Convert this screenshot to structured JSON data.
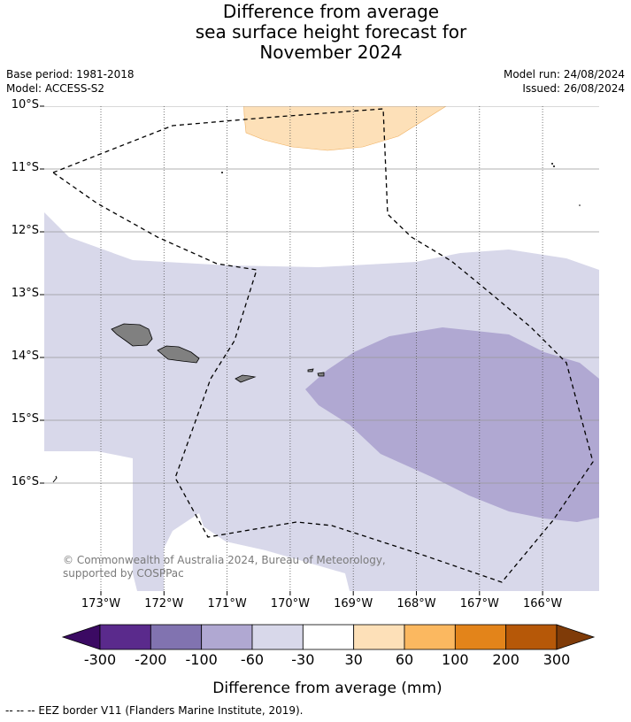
{
  "title": {
    "line1": "Difference from average",
    "line2": "sea surface height forecast for",
    "line3": "November 2024"
  },
  "meta": {
    "base_period": "Base period: 1981-2018",
    "model": "Model: ACCESS-S2",
    "model_run": "Model run: 24/08/2024",
    "issued": "Issued: 26/08/2024"
  },
  "map": {
    "lat_labels": [
      "10°S",
      "11°S",
      "12°S",
      "13°S",
      "14°S",
      "15°S",
      "16°S"
    ],
    "lon_labels": [
      "173°W",
      "172°W",
      "171°W",
      "170°W",
      "169°W",
      "168°W",
      "167°W",
      "166°W"
    ],
    "copyright": "© Commonwealth of Australia 2024, Bureau of Meteorology, supported by COSPPac",
    "colors": {
      "land": "#808080",
      "neg_60_30": "#d8d8ea",
      "neg_100_60": "#b0a8d2",
      "pos_30_60": "#fde0b8"
    }
  },
  "colorbar": {
    "label": "Difference from average (mm)",
    "ticks": [
      "-300",
      "-200",
      "-100",
      "-60",
      "-30",
      "30",
      "60",
      "100",
      "200",
      "300"
    ],
    "colors": [
      "#3b0a63",
      "#5a2a8c",
      "#8173b0",
      "#b0a8d2",
      "#d8d8ea",
      "#ffffff",
      "#fde0b8",
      "#fbb860",
      "#e3841a",
      "#b65808",
      "#7f3b08"
    ]
  },
  "footnote": "--  --  -- EEZ border V11 (Flanders Marine Institute, 2019)."
}
